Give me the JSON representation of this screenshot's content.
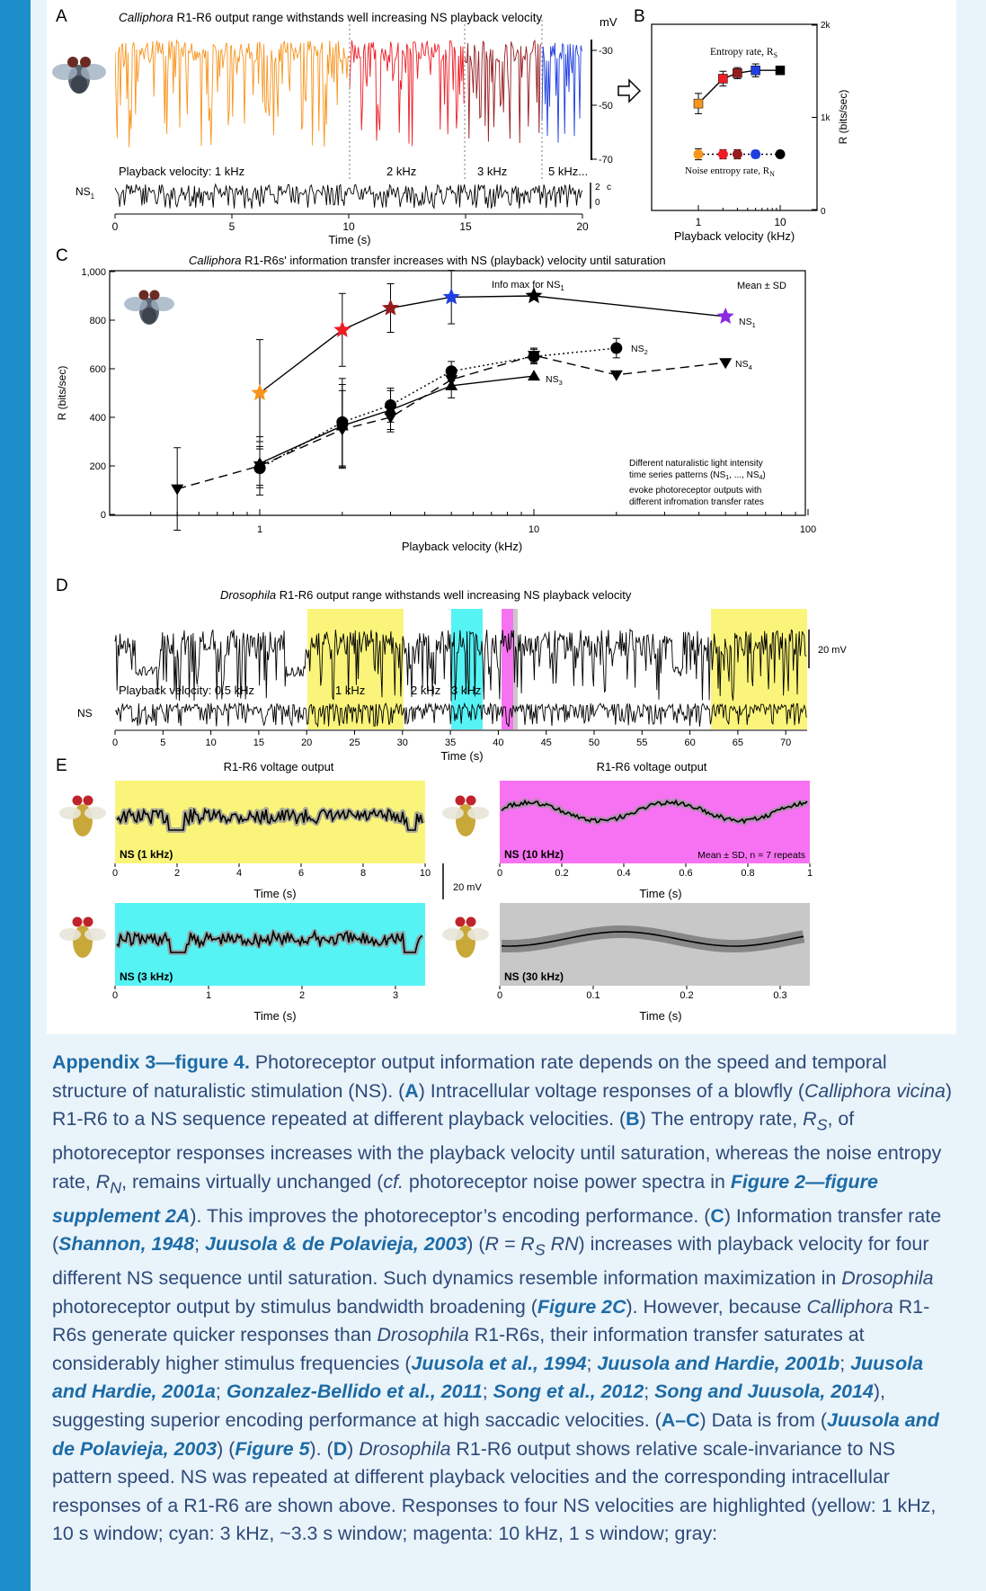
{
  "colors": {
    "side_bar": "#1c8fca",
    "orange": "#f7941d",
    "red": "#ee1c25",
    "darkred": "#961b1f",
    "blue": "#1f3fe0",
    "purple": "#8a2be2",
    "yellow": "#faf57a",
    "cyan": "#56f3f5",
    "magenta": "#f772f2",
    "gray": "#c8c8c8"
  },
  "panelA": {
    "letter": "A",
    "title_species": "Calliphora",
    "title_rest": " R1-R6 output range withstands well increasing NS playback velocity",
    "unit_mv": "mV",
    "mv_ticks": [
      "-30",
      "-50",
      "-70"
    ],
    "velocity_labels": [
      "Playback velocity: 1 kHz",
      "2 kHz",
      "3 kHz",
      "5 kHz..."
    ],
    "ns_label": "NS",
    "ns_sub": "1",
    "ns_scale": [
      "2",
      "0",
      "c"
    ],
    "x_ticks": [
      "0",
      "5",
      "10",
      "15",
      "20"
    ],
    "xlabel": "Time (s)"
  },
  "panelB": {
    "letter": "B",
    "entropy_label": "Entropy rate, R",
    "entropy_sub": "S",
    "noise_label": "Noise entropy rate, R",
    "noise_sub": "N",
    "y_ticks": [
      "2k",
      "1k",
      "0"
    ],
    "ylabel": "R (bits/sec)",
    "x_ticks": [
      "1",
      "10"
    ],
    "xlabel": "Playback velocity (kHz)",
    "chart_data": {
      "type": "line",
      "x": [
        1,
        2,
        3,
        5,
        10
      ],
      "xscale": "log",
      "ylim": [
        0,
        2000
      ],
      "series": [
        {
          "name": "Entropy rate, R_S",
          "values": [
            1150,
            1420,
            1480,
            1510,
            1510
          ],
          "err": [
            110,
            80,
            60,
            70,
            0
          ],
          "colors": [
            "#f7941d",
            "#ee1c25",
            "#961b1f",
            "#1f3fe0",
            "#000000"
          ],
          "marker": "square",
          "dash": "solid"
        },
        {
          "name": "Noise entropy rate, R_N",
          "values": [
            600,
            600,
            600,
            600,
            600
          ],
          "err": [
            60,
            50,
            50,
            40,
            0
          ],
          "colors": [
            "#f7941d",
            "#ee1c25",
            "#961b1f",
            "#1f3fe0",
            "#000000"
          ],
          "marker": "circle",
          "dash": "dotted"
        }
      ]
    }
  },
  "panelC": {
    "letter": "C",
    "title_species": "Calliphora",
    "title_rest": " R1-R6s' information transfer increases with NS (playback) velocity until saturation",
    "info_max": "Info max for NS",
    "info_max_sub": "1",
    "mean_sd": "Mean ± SD",
    "ylabel": "R (bits/sec)",
    "xlabel": "Playback velocity (kHz)",
    "y_ticks": [
      "0",
      "200",
      "400",
      "600",
      "800",
      "1,000"
    ],
    "x_ticks": [
      "1",
      "10",
      "100"
    ],
    "note_lines": [
      "Different naturalistic light intensity",
      "time series patterns (NS",
      "evoke photoreceptor outputs with",
      "different infromation transfer rates"
    ],
    "note_line2_sub1": "1",
    "note_line2_mid": ", ..., NS",
    "note_line2_sub2": "4",
    "note_line2_end": ")",
    "chart_data": {
      "type": "line",
      "xscale": "log",
      "ylim": [
        0,
        1000
      ],
      "xlim": [
        0.3,
        100
      ],
      "series": [
        {
          "name": "NS1",
          "x": [
            1,
            2,
            3,
            5,
            10,
            50
          ],
          "values": [
            500,
            760,
            850,
            895,
            900,
            815
          ],
          "err": [
            220,
            150,
            100,
            110,
            0,
            0
          ],
          "colors": [
            "#f7941d",
            "#ee1c25",
            "#961b1f",
            "#1f3fe0",
            "#000000",
            "#8a2be2"
          ],
          "marker": "star",
          "dash": "solid"
        },
        {
          "name": "NS2",
          "x": [
            1,
            2,
            3,
            5,
            10,
            20
          ],
          "values": [
            190,
            380,
            450,
            590,
            650,
            685
          ],
          "err": [
            80,
            180,
            70,
            40,
            30,
            40
          ],
          "marker": "circle",
          "dash": "dotted"
        },
        {
          "name": "NS3",
          "x": [
            1,
            2,
            3,
            5,
            10
          ],
          "values": [
            210,
            365,
            430,
            530,
            570
          ],
          "err": [
            90,
            170,
            80,
            50,
            0
          ],
          "marker": "triangle-up",
          "dash": "solid"
        },
        {
          "name": "NS4",
          "x": [
            0.5,
            1,
            2,
            3,
            5,
            10,
            20,
            50
          ],
          "values": [
            105,
            200,
            350,
            400,
            555,
            655,
            575,
            625
          ],
          "err": [
            170,
            120,
            160,
            60,
            40,
            30,
            0,
            0
          ],
          "marker": "triangle-down",
          "dash": "dashed"
        }
      ],
      "labels": [
        {
          "text": "NS",
          "sub": "1"
        },
        {
          "text": "NS",
          "sub": "2"
        },
        {
          "text": "NS",
          "sub": "3"
        },
        {
          "text": "NS",
          "sub": "4"
        }
      ]
    }
  },
  "panelD": {
    "letter": "D",
    "title_species": "Drosophila",
    "title_rest": " R1-R6 output range withstands well increasing NS playback velocity",
    "scale": "20 mV",
    "velocity_labels": [
      "Playback velocity: 0.5 kHz",
      "1 kHz",
      "2 kHz",
      "3 kHz"
    ],
    "ns_label": "NS",
    "x_ticks": [
      "0",
      "5",
      "10",
      "15",
      "20",
      "25",
      "30",
      "35",
      "40",
      "45",
      "50",
      "55",
      "60",
      "65",
      "70"
    ],
    "xlabel": "Time (s)"
  },
  "panelE": {
    "letter": "E",
    "header_left": "R1-R6 voltage output",
    "header_right": "R1-R6 voltage output",
    "scale": "20 mV",
    "mean_note": "Mean ± SD, n = 7 repeats",
    "xlabel": "Time (s)",
    "p1": {
      "label": "NS (1 kHz)",
      "ticks": [
        "0",
        "2",
        "4",
        "6",
        "8",
        "10"
      ]
    },
    "p2": {
      "label": "NS (10 kHz)",
      "ticks": [
        "0",
        "0.2",
        "0.4",
        "0.6",
        "0.8",
        "1"
      ]
    },
    "p3": {
      "label": "NS (3 kHz)",
      "ticks": [
        "0",
        "1",
        "2",
        "3"
      ]
    },
    "p4": {
      "label": "NS (30 kHz)",
      "ticks": [
        "0",
        "0.1",
        "0.2",
        "0.3"
      ]
    }
  },
  "caption": {
    "heading": "Appendix 3—figure 4.",
    "t1": " Photoreceptor output information rate depends on the speed and temporal structure of naturalistic stimulation (NS). (",
    "A": "A",
    "t2": ") Intracellular voltage responses of a blowfly (",
    "calliphora_vicina": "Calliphora vicina",
    "t3": ") R1-R6 to a NS sequence repeated at different playback velocities. (",
    "B": "B",
    "t4": ") The entropy rate, ",
    "R": "R",
    "S": "S",
    "t5": ", of photoreceptor responses increases with the playback velocity until saturation, whereas the noise entropy rate, ",
    "N": "N",
    "t6": ", remains virtually unchanged (",
    "cf": "cf.",
    "t7": " photoreceptor noise power spectra in ",
    "fig2supp": "Figure 2—figure supplement 2A",
    "t8": "). This improves the photoreceptor’s encoding performance. (",
    "C": "C",
    "t9": ") Information transfer rate (",
    "shannon": "Shannon, 1948",
    "semi": "; ",
    "juusola2003a": "Juusola & de Polavieja, 2003",
    "t10": ") (",
    "formula": "R = R",
    "formula_end": " RN",
    "t11": ") increases with playback velocity for four different NS sequence until saturation. Such dynamics resemble information maximization in ",
    "drosophila": "Drosophila",
    "t12": " photoreceptor output by stimulus bandwidth broadening (",
    "fig2c": "Figure 2C",
    "t13": "). However, because ",
    "calliphora": "Calliphora",
    "t14": " R1-R6s generate quicker responses than ",
    "t15": " R1-R6s, their information transfer saturates at considerably higher stimulus frequencies (",
    "juusola1994": "Juusola et al., 1994",
    "jh2001b": "Juusola and Hardie, 2001b",
    "jh2001a": "Juusola and Hardie, 2001a",
    "gonzalez": "Gonzalez-Bellido et al., 2011",
    "song2012": "Song et al., 2012",
    "song2014": "Song and Juusola, 2014",
    "t16": "), suggesting superior encoding performance at high saccadic velocities. (",
    "AC": "A–C",
    "t17": ") Data is from (",
    "juusola2003b": "Juusola and de Polavieja, 2003",
    "t18": ") (",
    "fig5": "Figure 5",
    "t19": "). (",
    "D": "D",
    "t20": ") ",
    "t21": " R1-R6 output shows relative scale-invariance to NS pattern speed. NS was repeated at different playback velocities and the corresponding intracellular responses of a R1-R6 are shown above. Responses to four NS velocities are highlighted (yellow: 1 kHz, 10 s window; cyan: 3 kHz, ~3.3 s window; magenta: 10 kHz, 1 s window; gray:"
  }
}
